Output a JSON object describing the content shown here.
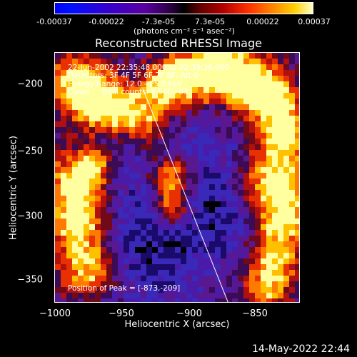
{
  "colorbar": {
    "ticks": [
      "-0.00037",
      "-0.00022",
      "-7.3e-05",
      "7.3e-05",
      "0.00022",
      "0.00037"
    ],
    "units": "(photons cm⁻² s⁻¹ asec⁻²)"
  },
  "title": "Reconstructed RHESSI Image",
  "info": {
    "line1": "22-Jun-2002 22:35:48.000 to 22:39:36.000",
    "line2": "Detectors: 3F 4F 5F 6F 7F 8F, Att 0",
    "line3": "Energy Range: 12.0 - 25.0 keV",
    "line4": "Clean     Total counts: 8.54E+03",
    "peak": "Position of Peak = [-873,-209]"
  },
  "axes": {
    "xlabel": "Heliocentric X (arcsec)",
    "ylabel": "Heliocentric Y (arcsec)",
    "xticks": [
      "−1000",
      "−950",
      "−900",
      "−850"
    ],
    "yticks": [
      "−200",
      "−250",
      "−300",
      "−350"
    ]
  },
  "footer": {
    "timestamp": "14-May-2022 22:44"
  },
  "colors": {
    "background": "#000000",
    "limb_line": "#ffffff"
  }
}
